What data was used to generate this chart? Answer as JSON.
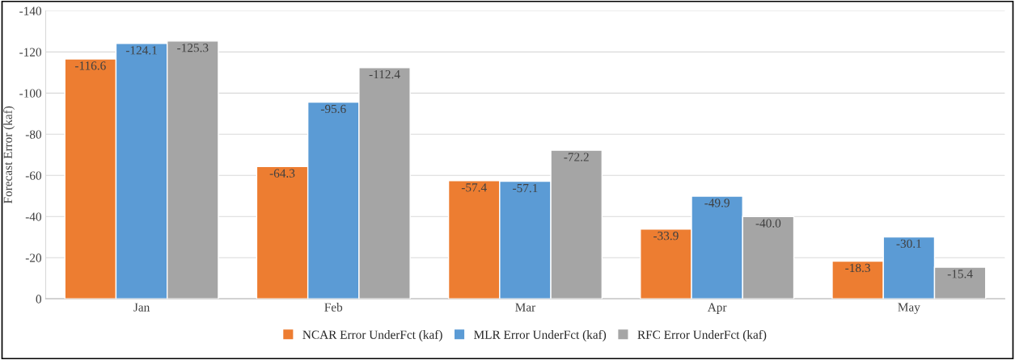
{
  "chart_data": {
    "type": "bar",
    "ylabel": "Forecast Error (kaf)",
    "categories": [
      "Jan",
      "Feb",
      "Mar",
      "Apr",
      "May"
    ],
    "series": [
      {
        "name": "NCAR Error UnderFct (kaf)",
        "color": "#ed7d31",
        "values": [
          -116.6,
          -64.3,
          -57.4,
          -33.9,
          -18.3
        ],
        "value_labels": [
          "-116.6",
          "-64.3",
          "-57.4",
          "-33.9",
          "-18.3"
        ]
      },
      {
        "name": "MLR Error UnderFct (kaf)",
        "color": "#5b9bd5",
        "values": [
          -124.1,
          -95.6,
          -57.1,
          -49.9,
          -30.1
        ],
        "value_labels": [
          "-124.1",
          "-95.6",
          "-57.1",
          "-49.9",
          "-30.1"
        ]
      },
      {
        "name": "RFC Error UnderFct (kaf)",
        "color": "#a5a5a5",
        "values": [
          -125.3,
          -112.4,
          -72.2,
          -40.0,
          -15.4
        ],
        "value_labels": [
          "-125.3",
          "-112.4",
          "-72.2",
          "-40.0",
          "-15.4"
        ]
      }
    ],
    "ylim": [
      0,
      -140
    ],
    "yticks": [
      0,
      -20,
      -40,
      -60,
      -80,
      -100,
      -120,
      -140
    ],
    "grid": "y",
    "legend": "bottom"
  }
}
